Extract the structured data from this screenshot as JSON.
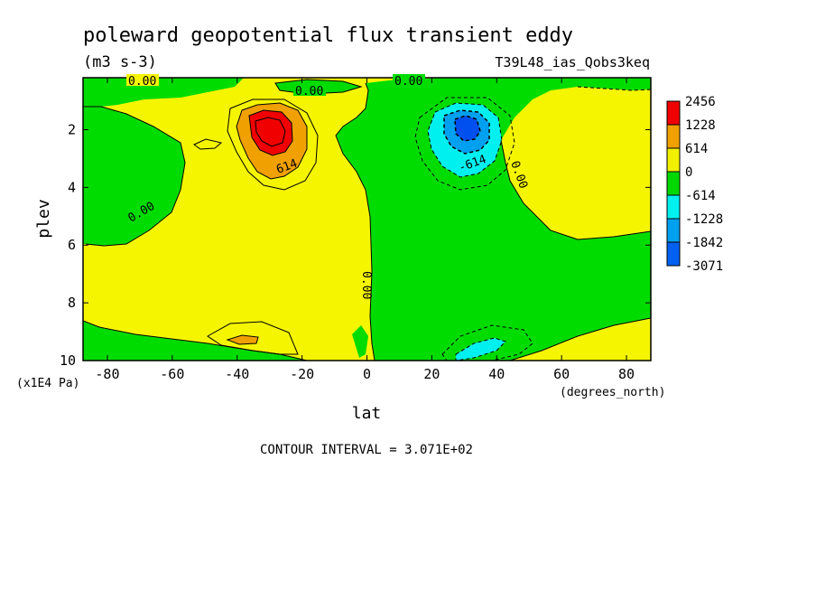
{
  "chart_data": {
    "type": "heatmap",
    "title": "poleward geopotential flux transient eddy",
    "units": "(m3 s-3)",
    "run_label": "T39L48_ias_Qobs3keq",
    "xlabel": "lat",
    "ylabel": "plev",
    "x_units": "(degrees_north)",
    "y_units": "(x1E4 Pa)",
    "xlim": [
      -87.5,
      87.5
    ],
    "ylim": [
      10,
      0.2
    ],
    "x_ticks": [
      -80,
      -60,
      -40,
      -20,
      0,
      20,
      40,
      60,
      80
    ],
    "x_tick_labels": [
      "-80",
      "-60",
      "-40",
      "-20",
      "0",
      "20",
      "40",
      "60",
      "80"
    ],
    "y_ticks": [
      2,
      4,
      6,
      8,
      10
    ],
    "y_tick_labels": [
      "2",
      "4",
      "6",
      "8",
      "10"
    ],
    "contour_interval_text": "CONTOUR INTERVAL = 3.071E+02",
    "contour_labels": [
      "0.00",
      "0.00",
      "0.00",
      "0.00",
      "0.00",
      "0.00",
      "614",
      "-614"
    ],
    "colorbar": {
      "levels": [
        "2456",
        "1228",
        "614",
        "0",
        "-614",
        "-1228",
        "-1842",
        "-3071"
      ],
      "colors": [
        "#f00000",
        "#f0a000",
        "#f0f000",
        "#00d800",
        "#00f0f0",
        "#00a0f0",
        "#0060f0"
      ]
    },
    "regions": {
      "positive_color": "#f5f500",
      "negative_color": "#00dc00",
      "low_fill": "#f0a000",
      "lowest_fill": "#f00000",
      "neg1_fill": "#00f0f0",
      "neg2_fill": "#00a0f0",
      "neg3_fill": "#0050f0"
    },
    "extrema": [
      {
        "name": "SH maximum",
        "lat": -30,
        "plev": 1.9,
        "value": 2456
      },
      {
        "name": "NH minimum",
        "lat": 31,
        "plev": 1.9,
        "value": -1842
      }
    ]
  }
}
